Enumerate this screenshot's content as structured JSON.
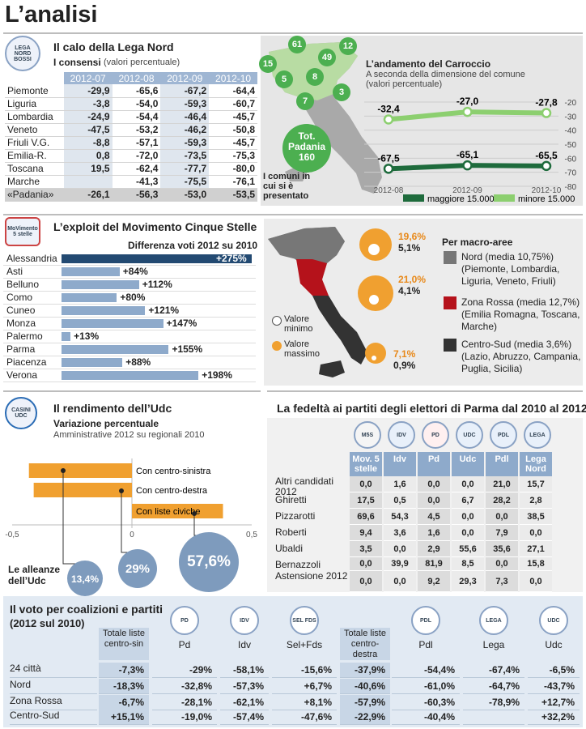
{
  "page_title": "L’analisi",
  "lega": {
    "title": "Il calo della Lega Nord",
    "subtitle_bold": "I consensi",
    "subtitle_note": "(valori percentuale)",
    "logo": "LEGA NORD BOSSI",
    "columns": [
      "2012-07",
      "2012-08",
      "2012-09",
      "2012-10"
    ],
    "rows": [
      {
        "name": "Piemonte",
        "values": [
          "-29,9",
          "-65,6",
          "-67,2",
          "-64,4"
        ]
      },
      {
        "name": "Liguria",
        "values": [
          "-3,8",
          "-54,0",
          "-59,3",
          "-60,7"
        ]
      },
      {
        "name": "Lombardia",
        "values": [
          "-24,9",
          "-54,4",
          "-46,4",
          "-45,7"
        ]
      },
      {
        "name": "Veneto",
        "values": [
          "-47,5",
          "-53,2",
          "-46,2",
          "-50,8"
        ]
      },
      {
        "name": "Friuli V.G.",
        "values": [
          "-8,8",
          "-57,1",
          "-59,3",
          "-45,7"
        ]
      },
      {
        "name": "Emilia-R.",
        "values": [
          "0,8",
          "-72,0",
          "-73,5",
          "-75,3"
        ]
      },
      {
        "name": "Toscana",
        "values": [
          "19,5",
          "-62,4",
          "-77,7",
          "-80,0"
        ]
      },
      {
        "name": "Marche",
        "values": [
          "",
          "-41,3",
          "-75,5",
          "-76,1"
        ]
      },
      {
        "name": "«Padania»",
        "values": [
          "-26,1",
          "-56,3",
          "-53,0",
          "-53,5"
        ]
      }
    ],
    "map_numbers": [
      "61",
      "49",
      "12",
      "15",
      "5",
      "8",
      "3",
      "7"
    ],
    "padania_label": "Tot. Padania",
    "padania_value": "160",
    "comuni_note": "I comuni in cui si è presentato"
  },
  "carroccio_chart": {
    "type": "line",
    "title": "L’andamento del Carroccio",
    "subtitle": "A seconda della dimensione del comune",
    "subtitle2": "(valori percentuale)",
    "categories": [
      "2012-08",
      "2012-09",
      "2012-10"
    ],
    "series": [
      {
        "name": "maggiore 15.000",
        "values": [
          -67.5,
          -65.1,
          -65.5
        ],
        "labels": [
          "-67,5",
          "-65,1",
          "-65,5"
        ],
        "color": "#1e6b3c"
      },
      {
        "name": "minore 15.000",
        "values": [
          -32.4,
          -27.0,
          -27.8
        ],
        "labels": [
          "-32,4",
          "-27,0",
          "-27,8"
        ],
        "color": "#8ccf6f"
      }
    ],
    "yticks": [
      "-20",
      "-30",
      "-40",
      "-50",
      "-60",
      "-70",
      "-80"
    ],
    "ylim": [
      -80,
      -20
    ]
  },
  "m5s": {
    "title": "L’exploit del Movimento Cinque Stelle",
    "chart_title": "Differenza voti 2012 su 2010",
    "logo": "MoVimento 5 stelle",
    "chart_data": {
      "type": "bar",
      "categories": [
        "Alessandria",
        "Asti",
        "Belluno",
        "Como",
        "Cuneo",
        "Monza",
        "Palermo",
        "Parma",
        "Piacenza",
        "Verona"
      ],
      "values": [
        275,
        84,
        112,
        80,
        121,
        147,
        13,
        155,
        88,
        198
      ],
      "labels": [
        "+275%",
        "+84%",
        "+112%",
        "+80%",
        "+121%",
        "+147%",
        "+13%",
        "+155%",
        "+88%",
        "+198%"
      ]
    },
    "macro_title": "Per macro-aree",
    "areas": [
      {
        "label": "Nord (media 10,75%)",
        "detail": "(Piemonte, Lombardia, Liguria, Veneto, Friuli)",
        "color": "#777777",
        "max": "19,6%",
        "min": "5,1%"
      },
      {
        "label": "Zona Rossa (media 12,7%)",
        "detail": "(Emilia Romagna, Toscana, Marche)",
        "color": "#b5121b",
        "max": "21,0%",
        "min": "4,1%"
      },
      {
        "label": "Centro-Sud (media 3,6%)",
        "detail": "(Lazio, Abruzzo, Campania, Puglia, Sicilia)",
        "color": "#333333",
        "max": "7,1%",
        "min": "0,9%"
      }
    ],
    "legend_min": "Valore minimo",
    "legend_max": "Valore massimo"
  },
  "udc": {
    "title": "Il rendimento dell’Udc",
    "subtitle": "Variazione percentuale",
    "subtitle2": "Amministrative 2012 su regionali 2010",
    "logo": "CASINI UDC",
    "chart_data": {
      "type": "bar",
      "categories": [
        "Con centro-sinistra",
        "Con centro-destra",
        "Con liste civiche"
      ],
      "values": [
        -0.43,
        -0.41,
        0.38
      ],
      "xlim": [
        -0.5,
        0.5
      ],
      "xticks": [
        "-0,5",
        "0",
        "0,5"
      ]
    },
    "alleanze_label": "Le alleanze dell’Udc",
    "bubbles": [
      "13,4%",
      "29%",
      "57,6%"
    ]
  },
  "parma": {
    "title": "La fedeltà ai partiti degli elettori di Parma dal 2010 al 2012",
    "columns": [
      "Mov. 5 stelle",
      "Idv",
      "Pd",
      "Udc",
      "Pdl",
      "Lega Nord"
    ],
    "logos": [
      "M5S",
      "IDV",
      "PD",
      "UDC",
      "PDL",
      "LEGA"
    ],
    "rows": [
      {
        "name": "Altri candidati 2012",
        "values": [
          "0,0",
          "1,6",
          "0,0",
          "0,0",
          "21,0",
          "15,7"
        ]
      },
      {
        "name": "Ghiretti",
        "values": [
          "17,5",
          "0,5",
          "0,0",
          "6,7",
          "28,2",
          "2,8"
        ]
      },
      {
        "name": "Pizzarotti",
        "values": [
          "69,6",
          "54,3",
          "4,5",
          "0,0",
          "0,0",
          "38,5"
        ]
      },
      {
        "name": "Roberti",
        "values": [
          "9,4",
          "3,6",
          "1,6",
          "0,0",
          "7,9",
          "0,0"
        ]
      },
      {
        "name": "Ubaldi",
        "values": [
          "3,5",
          "0,0",
          "2,9",
          "55,6",
          "35,6",
          "27,1"
        ]
      },
      {
        "name": "Bernazzoli",
        "values": [
          "0,0",
          "39,9",
          "81,9",
          "8,5",
          "0,0",
          "15,8"
        ]
      },
      {
        "name": "Astensione 2012",
        "values": [
          "0,0",
          "0,0",
          "9,2",
          "29,3",
          "7,3",
          "0,0"
        ]
      }
    ]
  },
  "coalizioni": {
    "title": "Il voto per coalizioni e partiti",
    "subtitle": "(2012 sul 2010)",
    "columns": [
      "Totale liste centro-sin",
      "Pd",
      "Idv",
      "Sel+Fds",
      "Totale liste centro-destra",
      "Pdl",
      "Lega",
      "Udc"
    ],
    "rows": [
      {
        "name": "24 città",
        "values": [
          "-7,3%",
          "-29%",
          "-58,1%",
          "-15,6%",
          "-37,9%",
          "-54,4%",
          "-67,4%",
          "-6,5%"
        ]
      },
      {
        "name": "Nord",
        "values": [
          "-18,3%",
          "-32,8%",
          "-57,3%",
          "+6,7%",
          "-40,6%",
          "-61,0%",
          "-64,7%",
          "-43,7%"
        ]
      },
      {
        "name": "Zona Rossa",
        "values": [
          "-6,7%",
          "-28,1%",
          "-62,1%",
          "+8,1%",
          "-57,9%",
          "-60,3%",
          "-78,9%",
          "+12,7%"
        ]
      },
      {
        "name": "Centro-Sud",
        "values": [
          "+15,1%",
          "-19,0%",
          "-57,4%",
          "-47,6%",
          "-22,9%",
          "-40,4%",
          "",
          "+32,2%"
        ]
      }
    ]
  }
}
